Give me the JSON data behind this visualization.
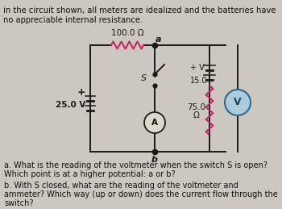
{
  "bg_color": "#ccc8c0",
  "title_line1": "in the circuit shown, all meters are idealized and the batteries have",
  "title_line2": "no appreciable internal resistance.",
  "resistor_top_label": "100.0 Ω",
  "battery_label": "25.0 V",
  "battery_plus": "+",
  "battery15_label": "15.0",
  "battery15_plus": "+ V",
  "resistor75_label": "75.0",
  "resistor75_omega": "Ω",
  "switch_label": "S",
  "ammeter_label": "A",
  "voltmeter_label": "V",
  "node_a": "a",
  "node_b": "b",
  "question_a": "a. What is the reading of the voltmeter when the switch S is open?",
  "question_a2": "Which point is at a higher potential: a or b?",
  "question_b": "b. With S closed, what are the reading of the voltmeter and",
  "question_b2": "ammeter? Which way (up or down) does the current flow through the",
  "question_b3": "switch?",
  "wire_color": "#1a1a1a",
  "resistor_color": "#cc2266",
  "meter_fill": "#ddd8cc",
  "meter_border": "#1a1a1a",
  "voltmeter_fill": "#aaccdd",
  "voltmeter_border": "#336688"
}
